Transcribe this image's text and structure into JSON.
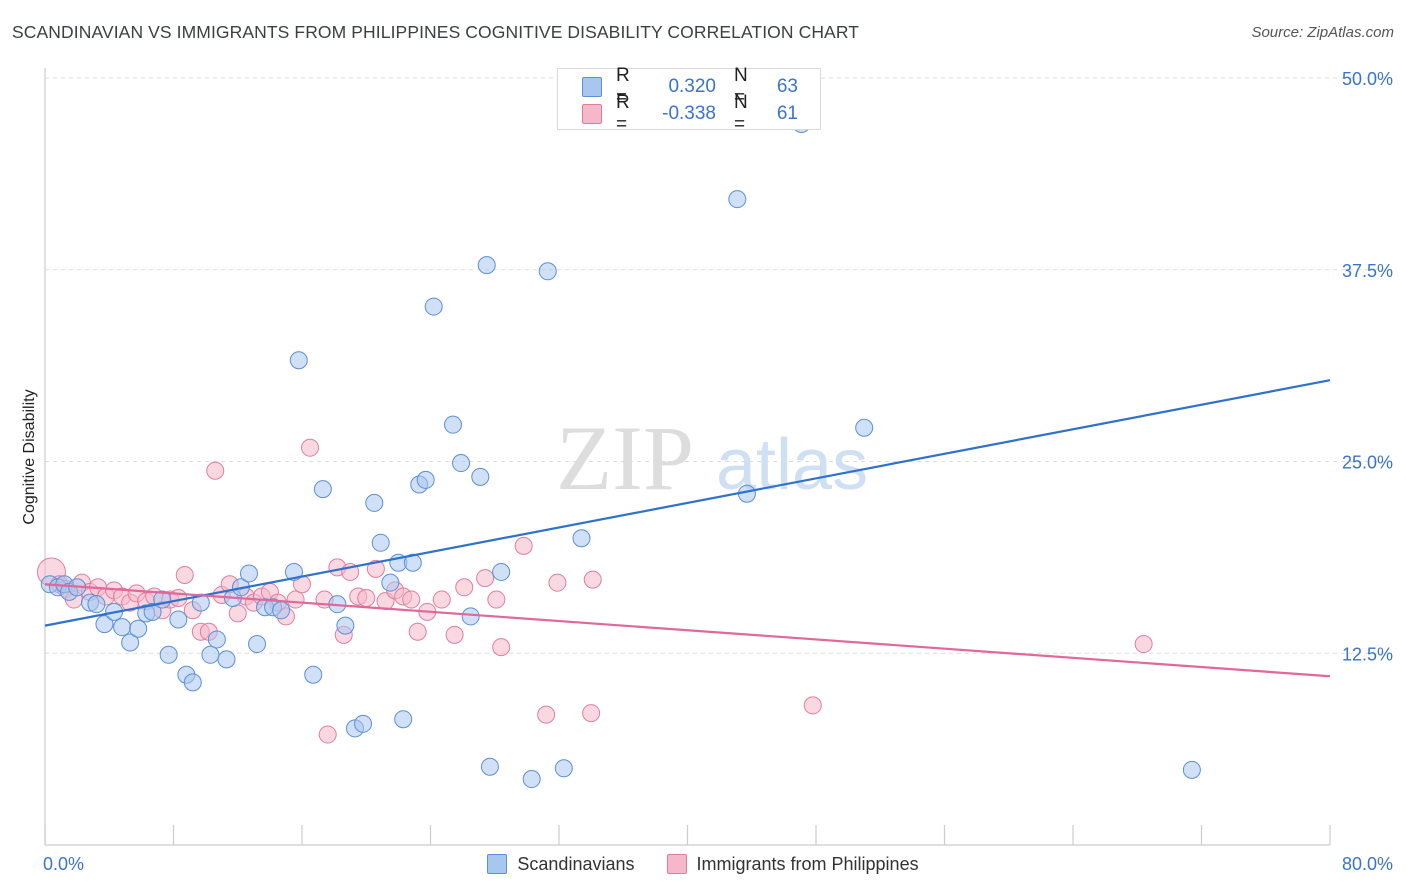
{
  "title": "SCANDINAVIAN VS IMMIGRANTS FROM PHILIPPINES COGNITIVE DISABILITY CORRELATION CHART",
  "source": "Source: ZipAtlas.com",
  "watermark": {
    "zip": "ZIP",
    "atlas": "atlas"
  },
  "colors": {
    "blue_fill": "#a9c7ee",
    "blue_stroke": "#5b8fd6",
    "blue_line": "#2f72cc",
    "pink_fill": "#f5b8cb",
    "pink_stroke": "#e07ea0",
    "pink_line": "#e0689a",
    "tick_label": "#3a74c9"
  },
  "legend_stats": [
    {
      "series": "Scandinavians",
      "r_label": "R =",
      "r_value": "0.320",
      "n_label": "N =",
      "n_value": "63",
      "color": "#a9c7ee",
      "border": "#5b8fd6"
    },
    {
      "series": "Immigrants from Philippines",
      "r_label": "R =",
      "r_value": "-0.338",
      "n_label": "N =",
      "n_value": "61",
      "color": "#f5b8cb",
      "border": "#e07ea0"
    }
  ],
  "chart_data": {
    "type": "scatter",
    "title": "SCANDINAVIAN VS IMMIGRANTS FROM PHILIPPINES COGNITIVE DISABILITY CORRELATION CHART",
    "xlabel": "",
    "ylabel": "Cognitive Disability",
    "xlim": [
      0,
      80
    ],
    "ylim": [
      0,
      50
    ],
    "x_tick_labels": [
      "0.0%",
      "80.0%"
    ],
    "y_ticks": [
      12.5,
      25.0,
      37.5,
      50.0
    ],
    "y_tick_labels": [
      "12.5%",
      "25.0%",
      "37.5%",
      "50.0%"
    ],
    "grid": true,
    "legend_position": "bottom",
    "series": [
      {
        "name": "Scandinavians",
        "color": "#5b8fd6",
        "trend": [
          [
            0,
            14.3
          ],
          [
            80,
            30.3
          ]
        ],
        "points": [
          [
            0.3,
            17.0
          ],
          [
            0.8,
            16.8
          ],
          [
            1.2,
            17.0
          ],
          [
            1.5,
            16.5
          ],
          [
            2.0,
            16.8
          ],
          [
            2.8,
            15.8
          ],
          [
            3.2,
            15.7
          ],
          [
            3.7,
            14.4
          ],
          [
            4.3,
            15.2
          ],
          [
            4.8,
            14.2
          ],
          [
            5.3,
            13.2
          ],
          [
            5.8,
            14.1
          ],
          [
            6.3,
            15.1
          ],
          [
            6.7,
            15.2
          ],
          [
            7.3,
            16.0
          ],
          [
            7.7,
            12.4
          ],
          [
            8.3,
            14.7
          ],
          [
            8.8,
            11.1
          ],
          [
            9.2,
            10.6
          ],
          [
            9.7,
            15.8
          ],
          [
            10.3,
            12.4
          ],
          [
            10.7,
            13.4
          ],
          [
            11.3,
            12.1
          ],
          [
            11.7,
            16.1
          ],
          [
            12.2,
            16.8
          ],
          [
            12.7,
            17.7
          ],
          [
            13.2,
            13.1
          ],
          [
            13.7,
            15.5
          ],
          [
            14.2,
            15.5
          ],
          [
            14.7,
            15.3
          ],
          [
            15.5,
            17.8
          ],
          [
            15.8,
            31.6
          ],
          [
            16.7,
            11.1
          ],
          [
            17.3,
            23.2
          ],
          [
            18.2,
            15.7
          ],
          [
            18.7,
            14.3
          ],
          [
            19.3,
            7.6
          ],
          [
            19.8,
            7.9
          ],
          [
            20.5,
            22.3
          ],
          [
            20.9,
            19.7
          ],
          [
            21.5,
            17.1
          ],
          [
            22.0,
            18.4
          ],
          [
            22.3,
            8.2
          ],
          [
            22.9,
            18.4
          ],
          [
            23.3,
            23.5
          ],
          [
            23.7,
            23.8
          ],
          [
            24.2,
            35.1
          ],
          [
            25.4,
            27.4
          ],
          [
            25.9,
            24.9
          ],
          [
            26.5,
            14.9
          ],
          [
            27.1,
            24.0
          ],
          [
            27.5,
            37.8
          ],
          [
            27.7,
            5.1
          ],
          [
            28.4,
            17.8
          ],
          [
            30.3,
            4.3
          ],
          [
            31.3,
            37.4
          ],
          [
            32.3,
            5.0
          ],
          [
            33.4,
            20.0
          ],
          [
            43.1,
            42.1
          ],
          [
            43.7,
            22.9
          ],
          [
            47.1,
            47.0
          ],
          [
            51.0,
            27.2
          ],
          [
            71.4,
            4.9
          ]
        ]
      },
      {
        "name": "Immigrants from Philippines",
        "color": "#e07ea0",
        "trend": [
          [
            0,
            17.0
          ],
          [
            80,
            11.0
          ]
        ],
        "points": [
          [
            0.4,
            17.8
          ],
          [
            0.9,
            17.0
          ],
          [
            1.3,
            16.7
          ],
          [
            1.8,
            16.0
          ],
          [
            2.3,
            17.1
          ],
          [
            2.8,
            16.5
          ],
          [
            3.3,
            16.8
          ],
          [
            3.8,
            16.2
          ],
          [
            4.3,
            16.6
          ],
          [
            4.8,
            16.2
          ],
          [
            5.3,
            15.8
          ],
          [
            5.7,
            16.4
          ],
          [
            6.3,
            15.9
          ],
          [
            6.8,
            16.2
          ],
          [
            7.3,
            15.3
          ],
          [
            7.8,
            16.0
          ],
          [
            8.3,
            16.1
          ],
          [
            8.7,
            17.6
          ],
          [
            9.2,
            15.3
          ],
          [
            9.7,
            13.9
          ],
          [
            10.2,
            13.9
          ],
          [
            10.6,
            24.4
          ],
          [
            11.0,
            16.3
          ],
          [
            11.5,
            17.0
          ],
          [
            12.0,
            15.1
          ],
          [
            12.5,
            16.2
          ],
          [
            13.0,
            15.8
          ],
          [
            13.5,
            16.2
          ],
          [
            14.0,
            16.5
          ],
          [
            14.5,
            15.8
          ],
          [
            15.0,
            14.9
          ],
          [
            15.6,
            16.0
          ],
          [
            16.0,
            17.0
          ],
          [
            16.5,
            25.9
          ],
          [
            17.4,
            16.0
          ],
          [
            17.6,
            7.2
          ],
          [
            18.2,
            18.1
          ],
          [
            18.6,
            13.7
          ],
          [
            19.0,
            17.8
          ],
          [
            19.5,
            16.2
          ],
          [
            20.0,
            16.1
          ],
          [
            20.6,
            18.0
          ],
          [
            21.2,
            15.9
          ],
          [
            21.8,
            16.6
          ],
          [
            22.3,
            16.2
          ],
          [
            22.8,
            16.0
          ],
          [
            23.2,
            13.9
          ],
          [
            23.8,
            15.2
          ],
          [
            24.7,
            16.0
          ],
          [
            25.5,
            13.7
          ],
          [
            26.1,
            16.8
          ],
          [
            27.4,
            17.4
          ],
          [
            28.1,
            16.0
          ],
          [
            28.4,
            12.9
          ],
          [
            29.8,
            19.5
          ],
          [
            31.2,
            8.5
          ],
          [
            31.9,
            17.1
          ],
          [
            34.0,
            8.6
          ],
          [
            34.1,
            17.3
          ],
          [
            47.8,
            9.1
          ],
          [
            68.4,
            13.1
          ]
        ]
      }
    ]
  }
}
